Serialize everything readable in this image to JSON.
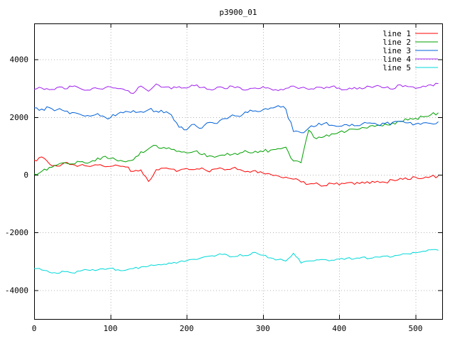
{
  "chart_data": {
    "type": "line",
    "title": "p3900_01",
    "xlabel": "",
    "ylabel": "",
    "xlim": [
      0,
      535
    ],
    "ylim": [
      -5000,
      5250
    ],
    "xticks": [
      0,
      100,
      200,
      300,
      400,
      500
    ],
    "yticks": [
      -4000,
      -2000,
      0,
      2000,
      4000
    ],
    "grid": true,
    "legend_position": "top-right",
    "x_step": 10,
    "series": [
      {
        "name": "line 1",
        "color": "#ff0000",
        "noise": 55,
        "values": [
          500,
          620,
          380,
          300,
          420,
          360,
          330,
          300,
          350,
          310,
          290,
          320,
          270,
          120,
          170,
          -230,
          180,
          230,
          200,
          150,
          220,
          180,
          240,
          100,
          210,
          170,
          230,
          180,
          120,
          150,
          60,
          20,
          -40,
          -80,
          -150,
          -250,
          -320,
          -280,
          -380,
          -300,
          -350,
          -280,
          -330,
          -250,
          -300,
          -220,
          -260,
          -180,
          -120,
          -160,
          -80,
          -120,
          -60,
          -40
        ]
      },
      {
        "name": "line 2",
        "color": "#00a000",
        "noise": 65,
        "values": [
          30,
          120,
          260,
          340,
          420,
          380,
          450,
          400,
          480,
          620,
          560,
          480,
          450,
          520,
          800,
          900,
          1020,
          950,
          880,
          820,
          760,
          810,
          700,
          660,
          640,
          680,
          710,
          760,
          790,
          820,
          800,
          860,
          910,
          960,
          480,
          420,
          1550,
          1250,
          1320,
          1420,
          1480,
          1520,
          1580,
          1640,
          1690,
          1720,
          1760,
          1800,
          1850,
          1900,
          1960,
          2010,
          2080,
          2150
        ]
      },
      {
        "name": "line 3",
        "color": "#0060d8",
        "noise": 70,
        "values": [
          2320,
          2280,
          2330,
          2260,
          2210,
          2160,
          2100,
          2060,
          2080,
          2040,
          1980,
          2120,
          2200,
          2230,
          2190,
          2260,
          2210,
          2150,
          2080,
          1650,
          1560,
          1750,
          1620,
          1820,
          1780,
          1950,
          2080,
          2020,
          2160,
          2220,
          2260,
          2320,
          2400,
          2280,
          1500,
          1460,
          1620,
          1700,
          1780,
          1720,
          1680,
          1740,
          1700,
          1760,
          1800,
          1740,
          1780,
          1820,
          1860,
          1800,
          1760,
          1800,
          1780,
          1840
        ]
      },
      {
        "name": "line 4",
        "color": "#a020f0",
        "noise": 50,
        "values": [
          2960,
          3010,
          2950,
          3030,
          2980,
          3060,
          3000,
          2940,
          3020,
          2970,
          3050,
          2990,
          2930,
          2820,
          3080,
          2900,
          3150,
          3040,
          2980,
          3060,
          3010,
          3090,
          3030,
          2960,
          3040,
          2990,
          3070,
          3020,
          2950,
          3010,
          3060,
          2980,
          2920,
          3000,
          3080,
          3020,
          2960,
          3040,
          2990,
          3060,
          3010,
          2950,
          3030,
          2980,
          3060,
          3100,
          3020,
          2970,
          3120,
          3060,
          3000,
          3080,
          3120,
          3160
        ]
      },
      {
        "name": "line 5",
        "color": "#00d8d8",
        "noise": 40,
        "values": [
          -3250,
          -3300,
          -3380,
          -3420,
          -3360,
          -3400,
          -3340,
          -3300,
          -3320,
          -3260,
          -3240,
          -3290,
          -3310,
          -3250,
          -3200,
          -3170,
          -3130,
          -3100,
          -3070,
          -3020,
          -2980,
          -2930,
          -2870,
          -2820,
          -2780,
          -2750,
          -2840,
          -2760,
          -2800,
          -2690,
          -2790,
          -2880,
          -2940,
          -2990,
          -2720,
          -3060,
          -2990,
          -2950,
          -2940,
          -2960,
          -2920,
          -2890,
          -2910,
          -2860,
          -2900,
          -2850,
          -2820,
          -2840,
          -2780,
          -2740,
          -2700,
          -2650,
          -2600,
          -2620
        ]
      }
    ]
  },
  "styles": {
    "background": "#ffffff",
    "grid_color": "#b4b4b4",
    "border_color": "#000000",
    "text_color": "#000000"
  }
}
